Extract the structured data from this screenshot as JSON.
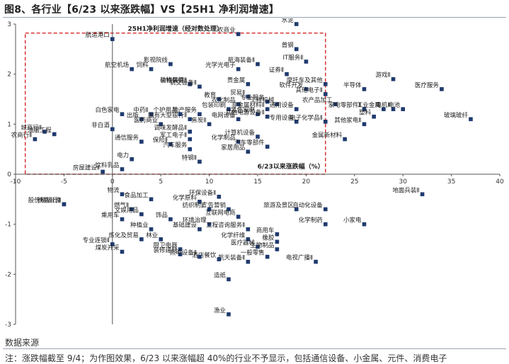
{
  "figure": {
    "title": "图8、各行业【6/23 以来涨跌幅】VS【25H1 净利润增速】",
    "source": "数据来源",
    "note": "注：涨跌幅截至 9/4；为作图效果，6/23 以来涨幅超 40%的行业不予显示，包括通信设备、小金属、元件、消费电子"
  },
  "chart_data": {
    "type": "scatter",
    "xlabel": "6/23以来涨跌幅（%）",
    "ylabel": "25H1净利润增速（经对数处理）",
    "xlim": [
      -10,
      40
    ],
    "ylim": [
      -3,
      3
    ],
    "xticks": [
      -10,
      -5,
      0,
      5,
      10,
      15,
      20,
      25,
      30,
      35,
      40
    ],
    "yticks": [
      -3,
      -2,
      -1,
      0,
      1,
      2,
      3
    ],
    "marker_color": "#1f3a6e",
    "highlight_box": {
      "x": [
        -9,
        22
      ],
      "y": [
        0,
        2.82
      ],
      "style": "red dashed"
    },
    "points": [
      {
        "label": "航运港口",
        "x": 0,
        "y": 2.7
      },
      {
        "label": "铁路公路",
        "x": -5,
        "y": -0.6
      },
      {
        "label": "股份制银行Ⅱ",
        "x": -5,
        "y": -0.6
      },
      {
        "label": "农商行Ⅱ",
        "x": -8,
        "y": 0.7
      },
      {
        "label": "城商行Ⅱ",
        "x": -7,
        "y": 0.85
      },
      {
        "label": "油服工程",
        "x": -6,
        "y": 0.8
      },
      {
        "label": "白色家电",
        "x": 1,
        "y": 1.2
      },
      {
        "label": "非白酒",
        "x": 0,
        "y": 0.9
      },
      {
        "label": "房屋建设Ⅱ",
        "x": -1,
        "y": 0.05
      },
      {
        "label": "饮料乳品",
        "x": 1,
        "y": 0.1
      },
      {
        "label": "航空机场",
        "x": 2,
        "y": 2.1
      },
      {
        "label": "饲料",
        "x": 4,
        "y": 2.1
      },
      {
        "label": "影视院线",
        "x": 6,
        "y": 2.2
      },
      {
        "label": "动物保健Ⅱ",
        "x": 8,
        "y": 1.8
      },
      {
        "label": "装修装饰Ⅱ",
        "x": 8,
        "y": 1.8
      },
      {
        "label": "轨交设备Ⅱ",
        "x": 9,
        "y": 1.75
      },
      {
        "label": "中药Ⅱ",
        "x": 4,
        "y": 1.2
      },
      {
        "label": "出版",
        "x": 3,
        "y": 1.1
      },
      {
        "label": "医药商业",
        "x": 5,
        "y": 1.0
      },
      {
        "label": "国有大型银行Ⅱ",
        "x": 8,
        "y": 1.1
      },
      {
        "label": "个护用品",
        "x": 7,
        "y": 1.2
      },
      {
        "label": "地产服务",
        "x": 9,
        "y": 1.2
      },
      {
        "label": "调味发酵品Ⅱ",
        "x": 8,
        "y": 0.85
      },
      {
        "label": "军工电子Ⅱ",
        "x": 8,
        "y": 0.7
      },
      {
        "label": "通信服务",
        "x": 3,
        "y": 0.65
      },
      {
        "label": "保险Ⅱ",
        "x": 6,
        "y": 0.6
      },
      {
        "label": "电力",
        "x": 2,
        "y": 0.3
      },
      {
        "label": "汽车服务",
        "x": 8,
        "y": 0.5
      },
      {
        "label": "特钢Ⅱ",
        "x": 9,
        "y": 0.25
      },
      {
        "label": "焦炭Ⅱ",
        "x": 10,
        "y": 1.0
      },
      {
        "label": "包装印刷",
        "x": 12,
        "y": 1.3
      },
      {
        "label": "教育",
        "x": 11,
        "y": 1.5
      },
      {
        "label": "农化制品",
        "x": 13,
        "y": 1.4
      },
      {
        "label": "电网设备",
        "x": 13,
        "y": 1.1
      },
      {
        "label": "化学制品",
        "x": 13,
        "y": 0.65
      },
      {
        "label": "计算机设备",
        "x": 15,
        "y": 0.75
      },
      {
        "label": "家居用品",
        "x": 14,
        "y": 0.45
      },
      {
        "label": "汽车零部件",
        "x": 16,
        "y": 0.55
      },
      {
        "label": "农商业",
        "x": 13,
        "y": 2.8
      },
      {
        "label": "光学光电子",
        "x": 13,
        "y": 2.1
      },
      {
        "label": "航海装备Ⅱ",
        "x": 15,
        "y": 2.2
      },
      {
        "label": "贵金属",
        "x": 14,
        "y": 1.8
      },
      {
        "label": "贸易Ⅱ",
        "x": 14,
        "y": 1.55
      },
      {
        "label": "专业服务",
        "x": 16,
        "y": 1.45
      },
      {
        "label": "非金属材料Ⅱ",
        "x": 16,
        "y": 1.3
      },
      {
        "label": "工程机械",
        "x": 17,
        "y": 1.4
      },
      {
        "label": "黑色家电",
        "x": 15,
        "y": 1.2
      },
      {
        "label": "其他电源设备Ⅱ",
        "x": 16,
        "y": 1.15
      },
      {
        "label": "通用设备",
        "x": 19,
        "y": 1.3
      },
      {
        "label": "专用设备",
        "x": 19,
        "y": 1.05
      },
      {
        "label": "证券Ⅱ",
        "x": 18,
        "y": 2.0
      },
      {
        "label": "软件开发",
        "x": 20,
        "y": 1.7
      },
      {
        "label": "水泥",
        "x": 19,
        "y": 3.0
      },
      {
        "label": "普钢",
        "x": 19,
        "y": 2.5
      },
      {
        "label": "IT服务Ⅱ",
        "x": 20,
        "y": 2.25
      },
      {
        "label": "摩托车及其他",
        "x": 22,
        "y": 1.8
      },
      {
        "label": "其他电子Ⅱ",
        "x": 22,
        "y": 1.6
      },
      {
        "label": "农产品加工",
        "x": 23,
        "y": 1.4
      },
      {
        "label": "电子化学品Ⅱ",
        "x": 22,
        "y": 1.05
      },
      {
        "label": "家电零部件Ⅱ",
        "x": 26,
        "y": 1.3
      },
      {
        "label": "其他家电Ⅱ",
        "x": 26,
        "y": 1.0
      },
      {
        "label": "塑料",
        "x": 27,
        "y": 1.15
      },
      {
        "label": "半导体",
        "x": 26,
        "y": 1.7
      },
      {
        "label": "游戏Ⅱ",
        "x": 29,
        "y": 1.9
      },
      {
        "label": "工业金属",
        "x": 28,
        "y": 1.3
      },
      {
        "label": "电机Ⅱ",
        "x": 29,
        "y": 1.3
      },
      {
        "label": "电池",
        "x": 30,
        "y": 1.3
      },
      {
        "label": "医疗服务",
        "x": 34,
        "y": 1.7
      },
      {
        "label": "玻璃玻纤",
        "x": 37,
        "y": 1.1
      },
      {
        "label": "金属新材料",
        "x": 24,
        "y": 0.7
      },
      {
        "label": "地面兵装Ⅱ",
        "x": 32,
        "y": -0.4
      },
      {
        "label": "物流",
        "x": 1,
        "y": -0.4
      },
      {
        "label": "食品加工",
        "x": 4,
        "y": -0.5
      },
      {
        "label": "燃气Ⅱ",
        "x": 2,
        "y": -0.7
      },
      {
        "label": "乘用车",
        "x": 1,
        "y": -0.9
      },
      {
        "label": "文娱用品",
        "x": 3,
        "y": -0.8
      },
      {
        "label": "饰品",
        "x": 6,
        "y": -0.9
      },
      {
        "label": "种植业",
        "x": 4,
        "y": -1.1
      },
      {
        "label": "林业",
        "x": 5,
        "y": -1.3
      },
      {
        "label": "专业连锁Ⅱ",
        "x": 0,
        "y": -1.4
      },
      {
        "label": "炼化及贸易",
        "x": 3,
        "y": -1.3
      },
      {
        "label": "煤炭开采",
        "x": 1,
        "y": -1.55
      },
      {
        "label": "化学原料",
        "x": 9,
        "y": -0.55
      },
      {
        "label": "纺织制造",
        "x": 10,
        "y": -0.7
      },
      {
        "label": "环保设备Ⅱ",
        "x": 11,
        "y": -0.45
      },
      {
        "label": "广告营销",
        "x": 12,
        "y": -0.7
      },
      {
        "label": "互联网电商",
        "x": 13,
        "y": -0.85
      },
      {
        "label": "环境治理",
        "x": 10,
        "y": -1.0
      },
      {
        "label": "基础建设",
        "x": 9,
        "y": -1.1
      },
      {
        "label": "工程咨询服务Ⅱ",
        "x": 14,
        "y": -1.1
      },
      {
        "label": "化学纤维",
        "x": 14,
        "y": -1.3
      },
      {
        "label": "商用车",
        "x": 17,
        "y": -1.2
      },
      {
        "label": "医疗器械",
        "x": 15,
        "y": -1.45
      },
      {
        "label": "生物制品",
        "x": 17,
        "y": -1.5
      },
      {
        "label": "一般零售",
        "x": 16,
        "y": -1.65
      },
      {
        "label": "航天装备Ⅱ",
        "x": 14,
        "y": -1.75
      },
      {
        "label": "酒店餐饮",
        "x": 11,
        "y": -1.7
      },
      {
        "label": "厨卫电器",
        "x": 7,
        "y": -1.5
      },
      {
        "label": "装修建材",
        "x": 7,
        "y": -1.6
      },
      {
        "label": "照明设备Ⅱ",
        "x": 9,
        "y": -1.65
      },
      {
        "label": "橡胶",
        "x": 17,
        "y": -1.35
      },
      {
        "label": "旅游及景区",
        "x": 19,
        "y": -0.7
      },
      {
        "label": "自动化设备",
        "x": 22,
        "y": -0.7
      },
      {
        "label": "化学制药",
        "x": 22,
        "y": -1.0
      },
      {
        "label": "小家电",
        "x": 26,
        "y": -1.0
      },
      {
        "label": "电视广播Ⅱ",
        "x": 21,
        "y": -1.75
      },
      {
        "label": "造纸",
        "x": 12,
        "y": -2.1
      },
      {
        "label": "渔业",
        "x": 12,
        "y": -2.8
      }
    ]
  }
}
